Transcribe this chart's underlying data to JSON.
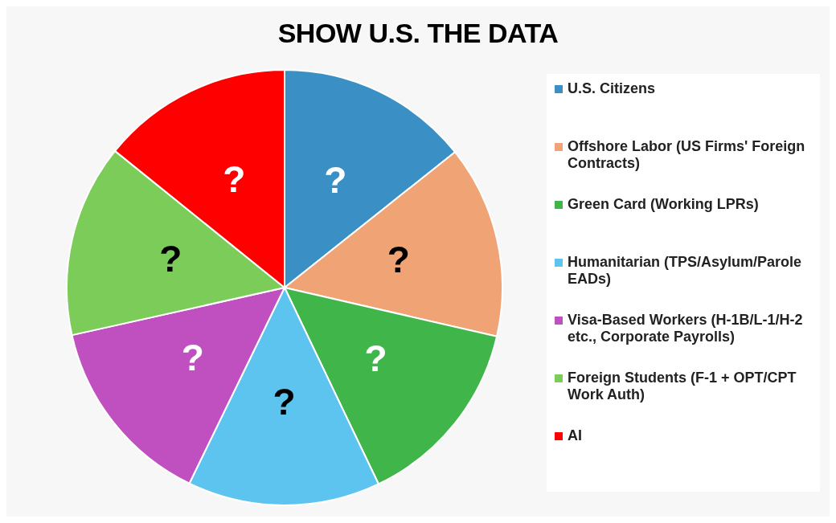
{
  "chart_data": {
    "type": "pie",
    "title": "SHOW U.S. THE DATA",
    "categories": [
      "U.S. Citizens",
      "Offshore Labor (US Firms' Foreign Contracts)",
      "Green Card (Working LPRs)",
      "Humanitarian (TPS/Asylum/Parole EADs)",
      "Visa-Based Workers (H-1B/L-1/H-2 etc., Corporate Payrolls)",
      "Foreign Students (F-1 + OPT/CPT Work Auth)",
      "AI"
    ],
    "values": [
      14.3,
      14.3,
      14.3,
      14.3,
      14.3,
      14.3,
      14.2
    ],
    "colors": [
      "#3a8fc4",
      "#f0a374",
      "#3fb54a",
      "#5cc4ee",
      "#c04fc0",
      "#7ccc5a",
      "#ff0000"
    ],
    "value_labels": [
      "?",
      "?",
      "?",
      "?",
      "?",
      "?",
      "?"
    ],
    "legend": "right"
  }
}
